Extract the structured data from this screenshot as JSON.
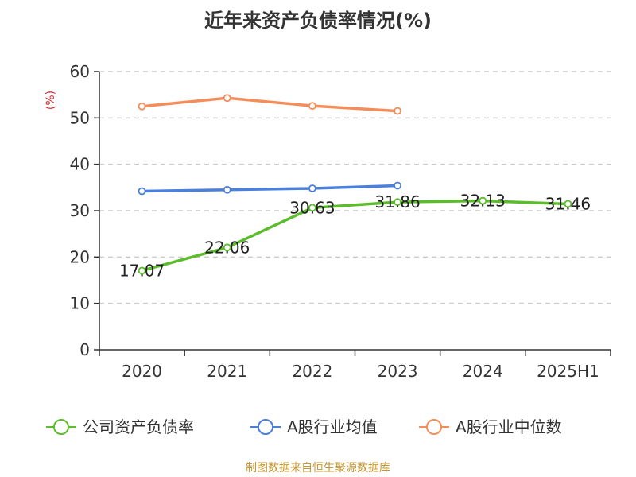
{
  "title": "近年来资产负债率情况(%)",
  "source": "制图数据来自恒生聚源数据库",
  "chart_data": {
    "type": "line",
    "title": "近年来资产负债率情况(%)",
    "ylabel": "(%)",
    "xlabel": "",
    "ylim": [
      0,
      60
    ],
    "yticks": [
      0,
      10,
      20,
      30,
      40,
      50,
      60
    ],
    "grid": true,
    "legend_position": "bottom",
    "categories": [
      "2020",
      "2021",
      "2022",
      "2023",
      "2024",
      "2025H1"
    ],
    "series": [
      {
        "name": "公司资产负债率",
        "color": "#5cbd2c",
        "values": [
          17.07,
          22.06,
          30.63,
          31.86,
          32.13,
          31.46
        ],
        "labels": [
          "17.07",
          "22.06",
          "30.63",
          "31.86",
          "32.13",
          "31.46"
        ]
      },
      {
        "name": "A股行业均值",
        "color": "#4a7fdc",
        "values": [
          34.2,
          34.5,
          34.8,
          35.4,
          null,
          null
        ]
      },
      {
        "name": "A股行业中位数",
        "color": "#f58d5a",
        "values": [
          52.5,
          54.3,
          52.6,
          51.5,
          null,
          null
        ]
      }
    ]
  }
}
